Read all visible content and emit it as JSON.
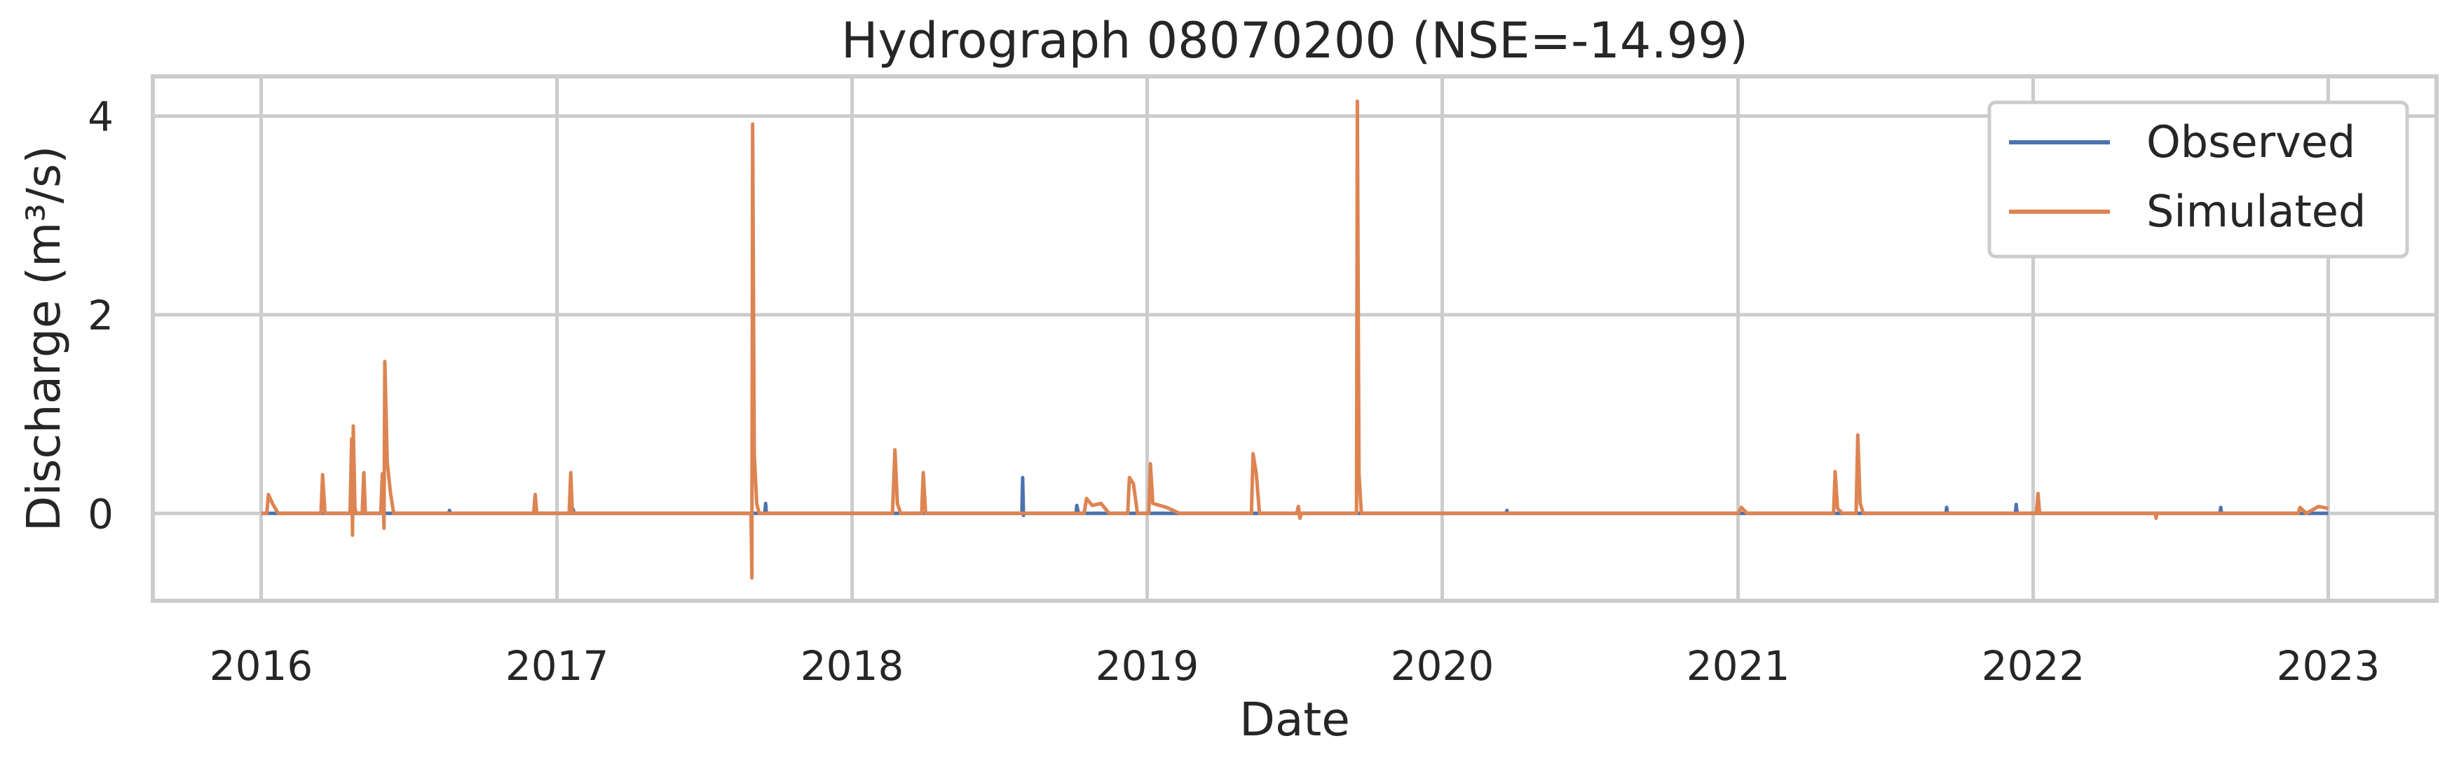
{
  "chart_data": {
    "type": "line",
    "title": "Hydrograph 08070200  (NSE=-14.99)",
    "xlabel": "Date",
    "ylabel": "Discharge (m³/s)",
    "xlim": [
      "2015-08-20",
      "2023-05-15"
    ],
    "ylim": [
      -0.88,
      4.4
    ],
    "x_ticks": [
      "2016-01-01",
      "2017-01-01",
      "2018-01-01",
      "2019-01-01",
      "2020-01-01",
      "2021-01-01",
      "2022-01-01",
      "2023-01-01"
    ],
    "x_tick_labels": [
      "2016",
      "2017",
      "2018",
      "2019",
      "2020",
      "2021",
      "2022",
      "2023"
    ],
    "y_ticks": [
      0,
      2,
      4
    ],
    "y_tick_labels": [
      "0",
      "2",
      "4"
    ],
    "grid": true,
    "legend_position": "top-right",
    "series": [
      {
        "name": "Observed",
        "color": "#4c72b0",
        "points": [
          [
            "2016-01-01",
            0.0
          ],
          [
            "2016-04-25",
            0.0
          ],
          [
            "2016-04-26",
            0.06
          ],
          [
            "2016-04-27",
            0.0
          ],
          [
            "2016-08-20",
            0.0
          ],
          [
            "2016-08-21",
            0.03
          ],
          [
            "2016-08-22",
            0.0
          ],
          [
            "2017-01-20",
            0.0
          ],
          [
            "2017-01-21",
            0.04
          ],
          [
            "2017-01-22",
            0.0
          ],
          [
            "2017-09-15",
            0.0
          ],
          [
            "2017-09-16",
            0.1
          ],
          [
            "2017-09-17",
            0.0
          ],
          [
            "2018-07-30",
            0.0
          ],
          [
            "2018-07-31",
            0.36
          ],
          [
            "2018-08-01",
            -0.02
          ],
          [
            "2018-08-02",
            0.0
          ],
          [
            "2018-10-05",
            0.0
          ],
          [
            "2018-10-06",
            0.08
          ],
          [
            "2018-10-08",
            0.0
          ],
          [
            "2020-03-20",
            0.0
          ],
          [
            "2020-03-21",
            0.03
          ],
          [
            "2020-03-22",
            0.0
          ],
          [
            "2021-09-15",
            0.0
          ],
          [
            "2021-09-16",
            0.06
          ],
          [
            "2021-09-17",
            0.0
          ],
          [
            "2021-12-10",
            0.0
          ],
          [
            "2021-12-11",
            0.09
          ],
          [
            "2021-12-12",
            0.0
          ],
          [
            "2022-08-20",
            0.0
          ],
          [
            "2022-08-21",
            0.06
          ],
          [
            "2022-08-22",
            0.0
          ],
          [
            "2023-01-01",
            0.0
          ]
        ]
      },
      {
        "name": "Simulated",
        "color": "#dd8452",
        "points": [
          [
            "2016-01-01",
            0.0
          ],
          [
            "2016-01-08",
            0.0
          ],
          [
            "2016-01-10",
            0.19
          ],
          [
            "2016-01-15",
            0.1
          ],
          [
            "2016-01-22",
            0.0
          ],
          [
            "2016-03-15",
            0.0
          ],
          [
            "2016-03-17",
            0.39
          ],
          [
            "2016-03-20",
            0.0
          ],
          [
            "2016-04-20",
            0.0
          ],
          [
            "2016-04-22",
            0.75
          ],
          [
            "2016-04-23",
            -0.22
          ],
          [
            "2016-04-24",
            0.88
          ],
          [
            "2016-04-26",
            0.05
          ],
          [
            "2016-04-28",
            0.0
          ],
          [
            "2016-05-05",
            0.0
          ],
          [
            "2016-05-07",
            0.41
          ],
          [
            "2016-05-09",
            0.0
          ],
          [
            "2016-05-28",
            0.0
          ],
          [
            "2016-05-30",
            0.4
          ],
          [
            "2016-06-01",
            -0.15
          ],
          [
            "2016-06-02",
            1.53
          ],
          [
            "2016-06-05",
            0.52
          ],
          [
            "2016-06-09",
            0.2
          ],
          [
            "2016-06-13",
            0.0
          ],
          [
            "2016-12-03",
            0.0
          ],
          [
            "2016-12-05",
            0.19
          ],
          [
            "2016-12-07",
            0.0
          ],
          [
            "2017-01-16",
            0.0
          ],
          [
            "2017-01-18",
            0.41
          ],
          [
            "2017-01-20",
            0.0
          ],
          [
            "2017-08-29",
            0.0
          ],
          [
            "2017-08-30",
            -0.65
          ],
          [
            "2017-08-31",
            3.92
          ],
          [
            "2017-09-02",
            0.6
          ],
          [
            "2017-09-05",
            0.1
          ],
          [
            "2017-09-08",
            0.0
          ],
          [
            "2018-02-20",
            0.0
          ],
          [
            "2018-02-23",
            0.64
          ],
          [
            "2018-02-26",
            0.1
          ],
          [
            "2018-03-02",
            0.0
          ],
          [
            "2018-03-28",
            0.0
          ],
          [
            "2018-03-30",
            0.41
          ],
          [
            "2018-04-02",
            0.0
          ],
          [
            "2018-10-15",
            0.0
          ],
          [
            "2018-10-18",
            0.15
          ],
          [
            "2018-10-25",
            0.08
          ],
          [
            "2018-11-05",
            0.1
          ],
          [
            "2018-11-15",
            0.0
          ],
          [
            "2018-12-08",
            0.0
          ],
          [
            "2018-12-10",
            0.36
          ],
          [
            "2018-12-15",
            0.3
          ],
          [
            "2018-12-20",
            0.0
          ],
          [
            "2019-01-03",
            0.0
          ],
          [
            "2019-01-05",
            0.5
          ],
          [
            "2019-01-08",
            0.1
          ],
          [
            "2019-01-25",
            0.06
          ],
          [
            "2019-02-10",
            0.0
          ],
          [
            "2019-05-10",
            0.0
          ],
          [
            "2019-05-12",
            0.6
          ],
          [
            "2019-05-16",
            0.4
          ],
          [
            "2019-05-20",
            0.0
          ],
          [
            "2019-07-05",
            0.0
          ],
          [
            "2019-07-07",
            0.07
          ],
          [
            "2019-07-09",
            -0.05
          ],
          [
            "2019-07-11",
            0.0
          ],
          [
            "2019-09-17",
            0.0
          ],
          [
            "2019-09-18",
            4.15
          ],
          [
            "2019-09-20",
            0.4
          ],
          [
            "2019-09-23",
            0.0
          ],
          [
            "2021-01-01",
            0.0
          ],
          [
            "2021-01-05",
            0.06
          ],
          [
            "2021-01-12",
            0.0
          ],
          [
            "2021-04-29",
            0.0
          ],
          [
            "2021-05-01",
            0.42
          ],
          [
            "2021-05-04",
            0.05
          ],
          [
            "2021-05-10",
            0.0
          ],
          [
            "2021-05-27",
            0.0
          ],
          [
            "2021-05-29",
            0.79
          ],
          [
            "2021-06-01",
            0.1
          ],
          [
            "2021-06-05",
            0.0
          ],
          [
            "2022-01-05",
            0.0
          ],
          [
            "2022-01-07",
            0.2
          ],
          [
            "2022-01-09",
            0.0
          ],
          [
            "2022-06-01",
            0.0
          ],
          [
            "2022-06-02",
            -0.05
          ],
          [
            "2022-06-03",
            0.0
          ],
          [
            "2022-11-25",
            0.0
          ],
          [
            "2022-11-27",
            0.06
          ],
          [
            "2022-12-05",
            0.0
          ],
          [
            "2022-12-20",
            0.07
          ],
          [
            "2023-01-01",
            0.05
          ]
        ]
      }
    ]
  }
}
